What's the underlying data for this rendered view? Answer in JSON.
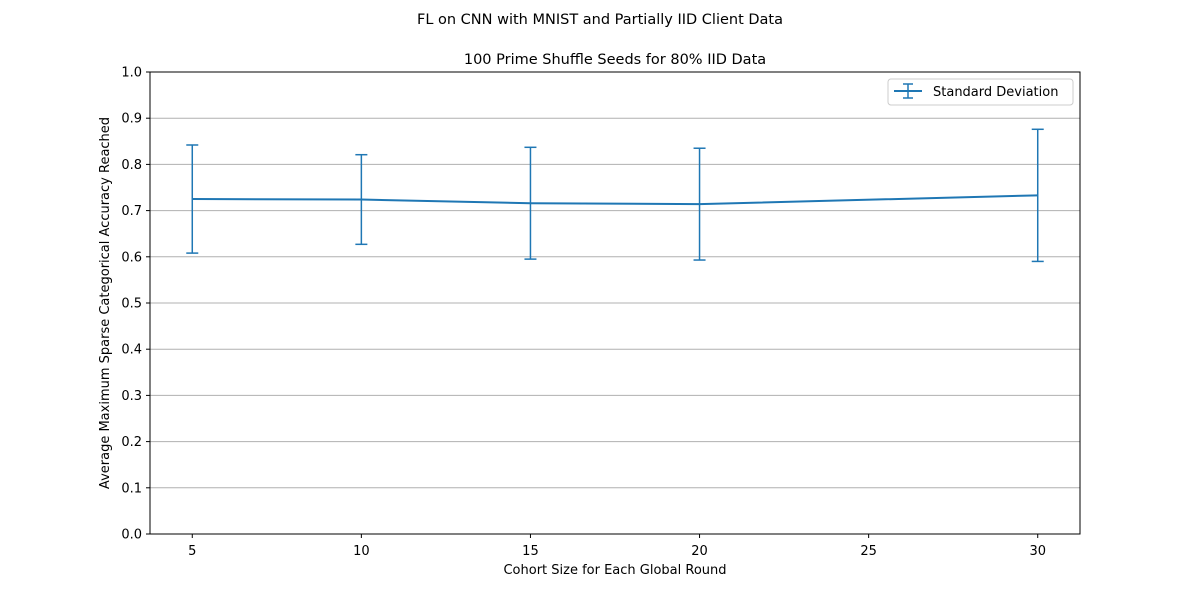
{
  "chart_data": {
    "type": "line",
    "suptitle": "FL on CNN with MNIST and Partially IID Client Data",
    "title": "100 Prime Shuffle Seeds for 80% IID Data",
    "xlabel": "Cohort Size for Each Global Round",
    "ylabel": "Average Maximum Sparse Categorical Accuracy Reached",
    "xlim": [
      3.75,
      31.25
    ],
    "ylim": [
      0.0,
      1.0
    ],
    "xticks": [
      5,
      10,
      15,
      20,
      25,
      30
    ],
    "yticks": [
      0.0,
      0.1,
      0.2,
      0.3,
      0.4,
      0.5,
      0.6,
      0.7,
      0.8,
      0.9,
      1.0
    ],
    "xtick_labels": [
      "5",
      "10",
      "15",
      "20",
      "25",
      "30"
    ],
    "ytick_labels": [
      "0.0",
      "0.1",
      "0.2",
      "0.3",
      "0.4",
      "0.5",
      "0.6",
      "0.7",
      "0.8",
      "0.9",
      "1.0"
    ],
    "grid": "y-axis horizontal lines",
    "legend_position": "top-right",
    "series": [
      {
        "name": "Standard Deviation",
        "color": "#1f77b4",
        "x": [
          5,
          10,
          15,
          20,
          30
        ],
        "y": [
          0.725,
          0.724,
          0.716,
          0.714,
          0.733
        ],
        "error": [
          0.117,
          0.097,
          0.121,
          0.121,
          0.143
        ]
      }
    ]
  }
}
